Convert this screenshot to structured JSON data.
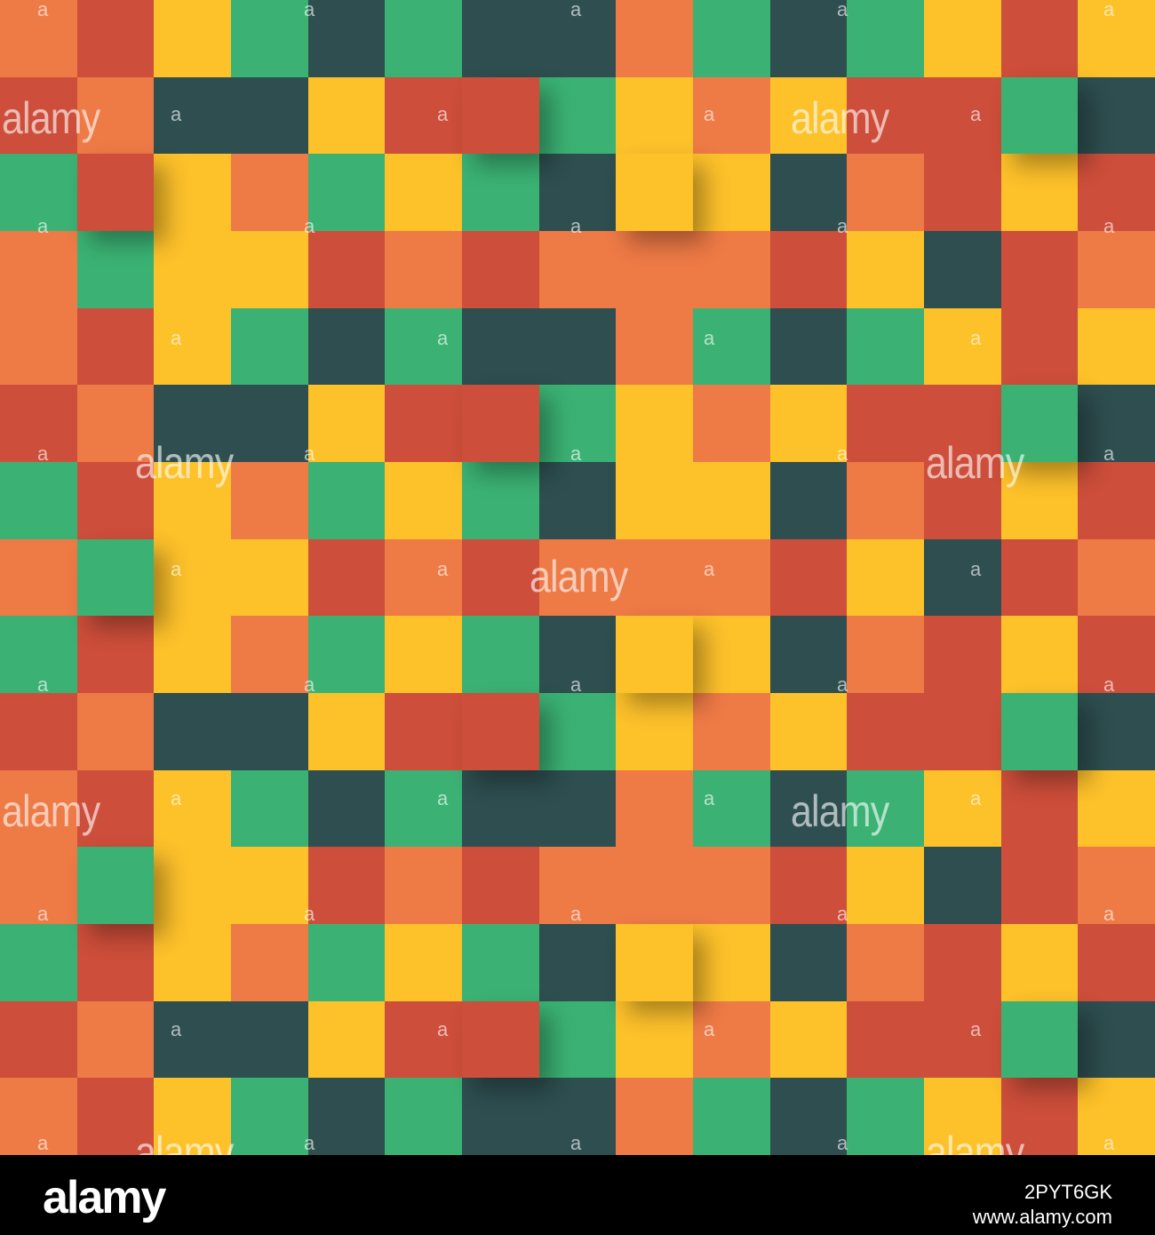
{
  "palette": {
    "R": "#cd4e3a",
    "O": "#ee7a46",
    "Y": "#fdc12a",
    "G": "#3bb273",
    "D": "#2e4e4f"
  },
  "grid": {
    "rows": [
      "ORYGDGDDOGDGYRY",
      "ROD0YRRGYOYRRGD",
      "GRYOGYGDYYDORYR",
      "OGYYROROOORYDRO",
      "ORYGDGDDOGDGYRY",
      "ROD0YRRGYOYRRGD",
      "GRYOGYGDYYDORYR",
      "OGYYROROOORYDRO",
      "GRYOGYGDYYDORYR",
      "ROD0YRRGYOYRRGD",
      "ORYGDGDDOGDGYRY",
      "OGYYROROOORYDRO",
      "GRYOGYGDYYDORYR",
      "ROD0YRRGYOYRRGD",
      "ORYGDGDDOGDGYRY"
    ]
  },
  "watermarks": {
    "big_text": "alamy",
    "small_text": "a"
  },
  "footer": {
    "logo": "alamy",
    "image_id": "2PYT6GK",
    "site": "www.alamy.com"
  }
}
